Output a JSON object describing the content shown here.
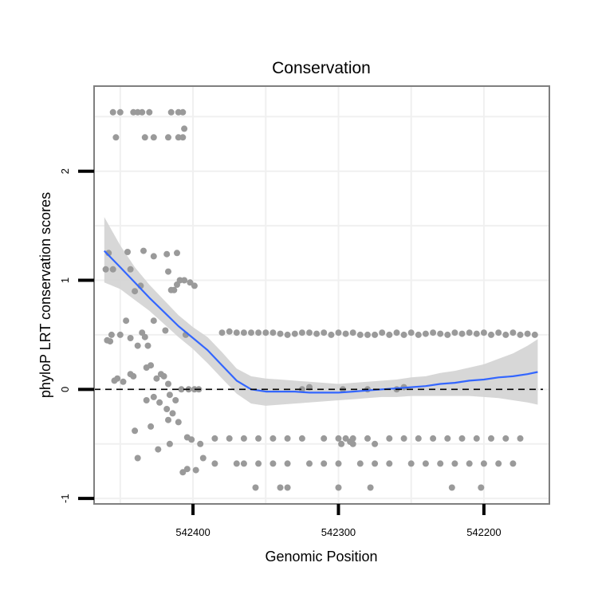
{
  "chart_data": {
    "type": "scatter",
    "title": "Conservation",
    "xlabel": "Genomic Position",
    "ylabel": "phyloP LRT conservation scores",
    "x_reversed": true,
    "xlim": [
      542468,
      542155
    ],
    "ylim": [
      -1.05,
      2.78
    ],
    "x_ticks": [
      542400,
      542300,
      542200
    ],
    "y_ticks": [
      -1,
      0,
      1,
      2
    ],
    "grid": true,
    "reference_line": {
      "y": 0,
      "style": "dashed"
    },
    "colors": {
      "points": "#9a9a9a",
      "smooth_line": "#3366ff",
      "confidence_band": "#d3d3d3",
      "panel_border": "#7f7f7f",
      "grid": "#f0f0f0"
    },
    "points": [
      [
        542455,
        2.54
      ],
      [
        542450,
        2.54
      ],
      [
        542441,
        2.54
      ],
      [
        542438,
        2.54
      ],
      [
        542435,
        2.54
      ],
      [
        542430,
        2.54
      ],
      [
        542415,
        2.54
      ],
      [
        542410,
        2.54
      ],
      [
        542407,
        2.54
      ],
      [
        542453,
        2.31
      ],
      [
        542433,
        2.31
      ],
      [
        542427,
        2.31
      ],
      [
        542417,
        2.31
      ],
      [
        542410,
        2.31
      ],
      [
        542407,
        2.31
      ],
      [
        542406,
        2.39
      ],
      [
        542460,
        1.1
      ],
      [
        542458,
        1.25
      ],
      [
        542455,
        1.1
      ],
      [
        542445,
        1.26
      ],
      [
        542443,
        1.1
      ],
      [
        542434,
        1.27
      ],
      [
        542427,
        1.22
      ],
      [
        542418,
        1.24
      ],
      [
        542417,
        1.08
      ],
      [
        542411,
        1.25
      ],
      [
        542415,
        0.91
      ],
      [
        542413,
        0.91
      ],
      [
        542411,
        0.96
      ],
      [
        542409,
        1.0
      ],
      [
        542406,
        1.0
      ],
      [
        542402,
        0.98
      ],
      [
        542399,
        0.95
      ],
      [
        542436,
        0.95
      ],
      [
        542440,
        0.9
      ],
      [
        542459,
        0.45
      ],
      [
        542457,
        0.44
      ],
      [
        542456,
        0.5
      ],
      [
        542450,
        0.5
      ],
      [
        542446,
        0.63
      ],
      [
        542443,
        0.47
      ],
      [
        542438,
        0.4
      ],
      [
        542435,
        0.52
      ],
      [
        542433,
        0.48
      ],
      [
        542431,
        0.4
      ],
      [
        542427,
        0.63
      ],
      [
        542419,
        0.54
      ],
      [
        542405,
        0.5
      ],
      [
        542454,
        0.08
      ],
      [
        542452,
        0.1
      ],
      [
        542448,
        0.07
      ],
      [
        542443,
        0.14
      ],
      [
        542441,
        0.12
      ],
      [
        542432,
        0.2
      ],
      [
        542429,
        0.22
      ],
      [
        542425,
        0.1
      ],
      [
        542422,
        0.14
      ],
      [
        542420,
        0.12
      ],
      [
        542417,
        0.05
      ],
      [
        542432,
        -0.1
      ],
      [
        542427,
        -0.07
      ],
      [
        542423,
        -0.12
      ],
      [
        542418,
        -0.18
      ],
      [
        542416,
        -0.05
      ],
      [
        542412,
        -0.1
      ],
      [
        542408,
        0.0
      ],
      [
        542403,
        0.0
      ],
      [
        542399,
        0.0
      ],
      [
        542396,
        0.0
      ],
      [
        542440,
        -0.38
      ],
      [
        542429,
        -0.34
      ],
      [
        542417,
        -0.28
      ],
      [
        542414,
        -0.22
      ],
      [
        542410,
        -0.3
      ],
      [
        542404,
        -0.44
      ],
      [
        542401,
        -0.46
      ],
      [
        542395,
        -0.5
      ],
      [
        542438,
        -0.63
      ],
      [
        542424,
        -0.55
      ],
      [
        542416,
        -0.5
      ],
      [
        542407,
        -0.76
      ],
      [
        542404,
        -0.73
      ],
      [
        542398,
        -0.74
      ],
      [
        542393,
        -0.63
      ],
      [
        542380,
        0.52
      ],
      [
        542375,
        0.53
      ],
      [
        542370,
        0.52
      ],
      [
        542365,
        0.52
      ],
      [
        542360,
        0.52
      ],
      [
        542355,
        0.52
      ],
      [
        542350,
        0.52
      ],
      [
        542345,
        0.52
      ],
      [
        542340,
        0.51
      ],
      [
        542335,
        0.5
      ],
      [
        542330,
        0.51
      ],
      [
        542325,
        0.52
      ],
      [
        542320,
        0.52
      ],
      [
        542315,
        0.51
      ],
      [
        542310,
        0.52
      ],
      [
        542305,
        0.5
      ],
      [
        542300,
        0.52
      ],
      [
        542295,
        0.51
      ],
      [
        542290,
        0.52
      ],
      [
        542285,
        0.5
      ],
      [
        542280,
        0.5
      ],
      [
        542275,
        0.5
      ],
      [
        542270,
        0.52
      ],
      [
        542265,
        0.5
      ],
      [
        542260,
        0.52
      ],
      [
        542255,
        0.5
      ],
      [
        542250,
        0.52
      ],
      [
        542245,
        0.5
      ],
      [
        542240,
        0.51
      ],
      [
        542235,
        0.52
      ],
      [
        542230,
        0.51
      ],
      [
        542225,
        0.5
      ],
      [
        542220,
        0.52
      ],
      [
        542215,
        0.51
      ],
      [
        542210,
        0.52
      ],
      [
        542205,
        0.51
      ],
      [
        542200,
        0.52
      ],
      [
        542195,
        0.5
      ],
      [
        542190,
        0.52
      ],
      [
        542185,
        0.5
      ],
      [
        542180,
        0.52
      ],
      [
        542175,
        0.5
      ],
      [
        542170,
        0.51
      ],
      [
        542165,
        0.5
      ],
      [
        542325,
        0.0
      ],
      [
        542320,
        0.02
      ],
      [
        542297,
        0.0
      ],
      [
        542280,
        0.0
      ],
      [
        542260,
        0.0
      ],
      [
        542255,
        0.02
      ],
      [
        542385,
        -0.45
      ],
      [
        542375,
        -0.45
      ],
      [
        542365,
        -0.45
      ],
      [
        542355,
        -0.45
      ],
      [
        542345,
        -0.45
      ],
      [
        542335,
        -0.45
      ],
      [
        542325,
        -0.45
      ],
      [
        542310,
        -0.45
      ],
      [
        542300,
        -0.45
      ],
      [
        542295,
        -0.45
      ],
      [
        542290,
        -0.45
      ],
      [
        542280,
        -0.45
      ],
      [
        542275,
        -0.5
      ],
      [
        542265,
        -0.45
      ],
      [
        542255,
        -0.45
      ],
      [
        542245,
        -0.45
      ],
      [
        542235,
        -0.45
      ],
      [
        542225,
        -0.45
      ],
      [
        542215,
        -0.45
      ],
      [
        542205,
        -0.45
      ],
      [
        542195,
        -0.45
      ],
      [
        542185,
        -0.45
      ],
      [
        542175,
        -0.45
      ],
      [
        542298,
        -0.5
      ],
      [
        542292,
        -0.48
      ],
      [
        542290,
        -0.5
      ],
      [
        542385,
        -0.68
      ],
      [
        542370,
        -0.68
      ],
      [
        542365,
        -0.68
      ],
      [
        542355,
        -0.68
      ],
      [
        542345,
        -0.68
      ],
      [
        542335,
        -0.68
      ],
      [
        542320,
        -0.68
      ],
      [
        542310,
        -0.68
      ],
      [
        542300,
        -0.68
      ],
      [
        542285,
        -0.68
      ],
      [
        542275,
        -0.68
      ],
      [
        542265,
        -0.68
      ],
      [
        542250,
        -0.68
      ],
      [
        542240,
        -0.68
      ],
      [
        542230,
        -0.68
      ],
      [
        542220,
        -0.68
      ],
      [
        542210,
        -0.68
      ],
      [
        542200,
        -0.68
      ],
      [
        542190,
        -0.68
      ],
      [
        542180,
        -0.68
      ],
      [
        542357,
        -0.9
      ],
      [
        542340,
        -0.9
      ],
      [
        542335,
        -0.9
      ],
      [
        542300,
        -0.9
      ],
      [
        542278,
        -0.9
      ],
      [
        542222,
        -0.9
      ],
      [
        542202,
        -0.9
      ]
    ],
    "smooth_line": {
      "x": [
        542461,
        542450,
        542440,
        542430,
        542420,
        542410,
        542400,
        542390,
        542380,
        542370,
        542360,
        542350,
        542340,
        542330,
        542320,
        542310,
        542300,
        542290,
        542280,
        542270,
        542260,
        542250,
        542240,
        542230,
        542220,
        542210,
        542200,
        542190,
        542180,
        542170,
        542163
      ],
      "y": [
        1.27,
        1.12,
        0.98,
        0.84,
        0.71,
        0.58,
        0.47,
        0.36,
        0.22,
        0.08,
        0.0,
        -0.02,
        -0.02,
        -0.02,
        -0.03,
        -0.03,
        -0.03,
        -0.02,
        -0.01,
        0.0,
        0.01,
        0.02,
        0.03,
        0.05,
        0.06,
        0.08,
        0.09,
        0.11,
        0.12,
        0.14,
        0.16
      ],
      "lower": [
        0.98,
        0.92,
        0.82,
        0.72,
        0.6,
        0.48,
        0.37,
        0.24,
        0.1,
        -0.04,
        -0.13,
        -0.15,
        -0.14,
        -0.13,
        -0.12,
        -0.11,
        -0.1,
        -0.09,
        -0.08,
        -0.07,
        -0.07,
        -0.06,
        -0.06,
        -0.06,
        -0.06,
        -0.06,
        -0.07,
        -0.08,
        -0.1,
        -0.12,
        -0.14
      ],
      "upper": [
        1.58,
        1.32,
        1.12,
        0.96,
        0.82,
        0.68,
        0.57,
        0.48,
        0.34,
        0.19,
        0.12,
        0.1,
        0.09,
        0.08,
        0.07,
        0.06,
        0.05,
        0.06,
        0.07,
        0.08,
        0.09,
        0.11,
        0.12,
        0.15,
        0.17,
        0.2,
        0.23,
        0.28,
        0.33,
        0.4,
        0.46
      ]
    }
  }
}
